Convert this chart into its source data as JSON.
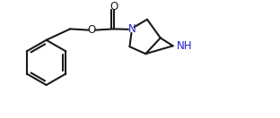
{
  "background_color": "#ffffff",
  "line_color": "#1a1a1a",
  "n_color": "#2222cc",
  "lw": 1.5,
  "fig_width": 3.12,
  "fig_height": 1.32,
  "dpi": 100,
  "xlim": [
    0.0,
    10.5
  ],
  "ylim": [
    0.2,
    4.5
  ]
}
